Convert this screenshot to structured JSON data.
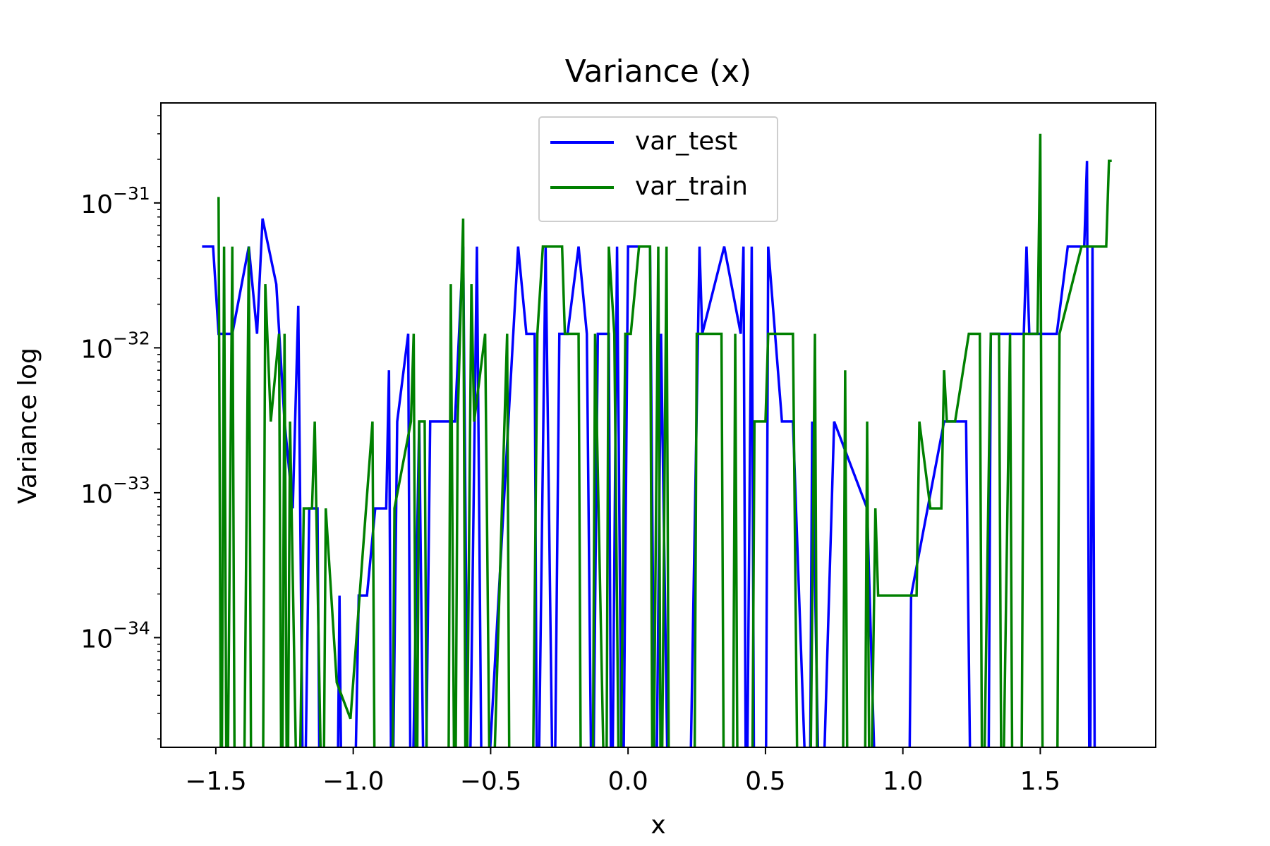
{
  "chart_data": {
    "type": "line",
    "title": "Variance (x)",
    "x_label": "x",
    "y_label": "Variance log",
    "yscale": "log",
    "legend": "upper center",
    "grid": false,
    "xlim": [
      -1.7,
      1.92
    ],
    "ylim": [
      1.75e-35,
      4.9e-31
    ],
    "xticks": [
      {
        "value": -1.5,
        "label": "−1.5"
      },
      {
        "value": -1.0,
        "label": "−1.0"
      },
      {
        "value": -0.5,
        "label": "−0.5"
      },
      {
        "value": 0.0,
        "label": "0.0"
      },
      {
        "value": 0.5,
        "label": "0.5"
      },
      {
        "value": 1.0,
        "label": "1.0"
      },
      {
        "value": 1.5,
        "label": "1.5"
      }
    ],
    "yticks": [
      {
        "value": 1e-34,
        "label": "10",
        "exponent": "−34"
      },
      {
        "value": 1e-33,
        "label": "10",
        "exponent": "−33"
      },
      {
        "value": 1e-32,
        "label": "10",
        "exponent": "−32"
      },
      {
        "value": 1e-31,
        "label": "10",
        "exponent": "−31"
      }
    ],
    "yminorticks": [
      2e-35,
      3e-35,
      4e-35,
      5e-35,
      6e-35,
      7e-35,
      8e-35,
      9e-35,
      2e-34,
      3e-34,
      4e-34,
      5e-34,
      6e-34,
      7e-34,
      8e-34,
      9e-34,
      2e-33,
      3e-33,
      4e-33,
      5e-33,
      6e-33,
      7e-33,
      8e-33,
      9e-33,
      2e-32,
      3e-32,
      4e-32,
      5e-32,
      6e-32,
      7e-32,
      8e-32,
      9e-32,
      2e-31,
      3e-31,
      4e-31
    ],
    "series": [
      {
        "name": "var_test",
        "color": "#0000ff",
        "x": [
          -1.55,
          -1.51,
          -1.49,
          -1.44,
          -1.38,
          -1.35,
          -1.33,
          -1.28,
          -1.25,
          -1.22,
          -1.2,
          -1.18,
          -1.16,
          -1.13,
          -1.12,
          -1.06,
          -1.05,
          -1.04,
          -1.0,
          -0.98,
          -0.95,
          -0.92,
          -0.88,
          -0.87,
          -0.86,
          -0.84,
          -0.8,
          -0.79,
          -0.76,
          -0.74,
          -0.72,
          -0.63,
          -0.6,
          -0.58,
          -0.55,
          -0.53,
          -0.4,
          -0.37,
          -0.34,
          -0.33,
          -0.3,
          -0.27,
          -0.25,
          -0.22,
          -0.18,
          -0.15,
          -0.13,
          -0.11,
          -0.07,
          -0.06,
          -0.04,
          -0.02,
          0.0,
          0.08,
          0.1,
          0.12,
          0.15,
          0.22,
          0.26,
          0.27,
          0.35,
          0.41,
          0.42,
          0.43,
          0.45,
          0.46,
          0.5,
          0.51,
          0.56,
          0.6,
          0.66,
          0.67,
          0.7,
          0.75,
          0.87,
          0.91,
          1.02,
          1.03,
          1.15,
          1.23,
          1.25,
          1.31,
          1.32,
          1.44,
          1.45,
          1.46,
          1.56,
          1.6,
          1.66,
          1.67,
          1.68,
          1.69,
          1.7
        ],
        "values": [
          5e-32,
          5e-32,
          1.25e-32,
          1.25e-32,
          5e-32,
          1.25e-32,
          7.8e-32,
          2.75e-32,
          3.1e-33,
          7.8e-34,
          1.95e-32,
          0,
          7.8e-34,
          7.8e-34,
          0,
          0,
          1.95e-34,
          0,
          0,
          1.95e-34,
          1.95e-34,
          7.8e-34,
          7.8e-34,
          7e-33,
          0,
          3.1e-33,
          1.25e-32,
          0,
          3.1e-33,
          0,
          3.1e-33,
          3.1e-33,
          5e-32,
          0,
          5e-32,
          0,
          5e-32,
          1.25e-32,
          1.25e-32,
          0,
          5e-32,
          0,
          1.25e-32,
          1.25e-32,
          5e-32,
          1.25e-32,
          0,
          1.25e-32,
          1.25e-32,
          0,
          5e-32,
          0,
          5e-32,
          5e-32,
          0,
          1.25e-32,
          0,
          0,
          5e-32,
          1.25e-32,
          5e-32,
          1.25e-32,
          5e-32,
          0,
          5e-32,
          0,
          0,
          5e-32,
          3.1e-33,
          3.1e-33,
          0,
          3.1e-33,
          0,
          3.1e-33,
          7.8e-34,
          0,
          0,
          1.95e-34,
          3.1e-33,
          3.1e-33,
          0,
          0,
          1.25e-32,
          1.25e-32,
          5e-32,
          1.25e-32,
          1.25e-32,
          5e-32,
          5e-32,
          1.95e-31,
          0,
          5e-32,
          0
        ]
      },
      {
        "name": "var_train",
        "color": "#008000",
        "x": [
          -1.49,
          -1.48,
          -1.47,
          -1.46,
          -1.44,
          -1.43,
          -1.4,
          -1.38,
          -1.37,
          -1.33,
          -1.32,
          -1.3,
          -1.27,
          -1.26,
          -1.25,
          -1.24,
          -1.23,
          -1.2,
          -1.18,
          -1.15,
          -1.14,
          -1.11,
          -1.1,
          -1.06,
          -1.01,
          -0.93,
          -0.92,
          -0.86,
          -0.85,
          -0.79,
          -0.78,
          -0.77,
          -0.76,
          -0.74,
          -0.73,
          -0.655,
          -0.645,
          -0.63,
          -0.62,
          -0.6,
          -0.59,
          -0.57,
          -0.56,
          -0.52,
          -0.5,
          -0.44,
          -0.43,
          -0.35,
          -0.33,
          -0.31,
          -0.24,
          -0.23,
          -0.18,
          -0.17,
          -0.13,
          -0.12,
          -0.08,
          -0.07,
          -0.05,
          -0.03,
          -0.01,
          0.01,
          0.04,
          0.08,
          0.09,
          0.11,
          0.12,
          0.14,
          0.15,
          0.24,
          0.25,
          0.34,
          0.35,
          0.38,
          0.39,
          0.4,
          0.45,
          0.46,
          0.5,
          0.51,
          0.6,
          0.62,
          0.66,
          0.68,
          0.69,
          0.78,
          0.79,
          0.8,
          0.86,
          0.87,
          0.88,
          0.9,
          0.91,
          1.05,
          1.06,
          1.1,
          1.14,
          1.15,
          1.16,
          1.19,
          1.24,
          1.28,
          1.29,
          1.32,
          1.35,
          1.36,
          1.39,
          1.4,
          1.43,
          1.44,
          1.49,
          1.5,
          1.51,
          1.56,
          1.57,
          1.65,
          1.74,
          1.75,
          1.76
        ],
        "values": [
          1.1e-31,
          0,
          5e-32,
          0,
          5e-32,
          0,
          0,
          5e-32,
          0,
          0,
          2.75e-32,
          3.1e-33,
          1.25e-32,
          0,
          1.25e-32,
          0,
          3.1e-33,
          0,
          7.8e-34,
          7.8e-34,
          3.1e-33,
          0,
          7.8e-34,
          4.9e-35,
          2.75e-35,
          3.1e-33,
          0,
          0,
          7.8e-34,
          3.1e-33,
          1.25e-32,
          0,
          3.1e-33,
          3.1e-33,
          0,
          0,
          2.75e-32,
          0,
          3.1e-33,
          7.8e-32,
          0,
          2.75e-32,
          3.1e-33,
          1.25e-32,
          0,
          1.25e-32,
          0,
          0,
          1.25e-32,
          5e-32,
          5e-32,
          1.25e-32,
          1.25e-32,
          0,
          0,
          1.25e-32,
          0,
          5e-32,
          1.25e-32,
          0,
          1.25e-32,
          1.25e-32,
          5e-32,
          5e-32,
          0,
          5e-32,
          0,
          5e-32,
          0,
          0,
          1.25e-32,
          1.25e-32,
          0,
          0,
          1.25e-32,
          0,
          0,
          3.1e-33,
          3.1e-33,
          1.25e-32,
          1.25e-32,
          0,
          0,
          1.25e-32,
          0,
          0,
          7e-33,
          0,
          0,
          3.1e-33,
          0,
          7.8e-34,
          1.95e-34,
          1.95e-34,
          3.1e-33,
          7.8e-34,
          7.8e-34,
          7e-33,
          3.1e-33,
          3.1e-33,
          1.25e-32,
          1.25e-32,
          0,
          1.25e-32,
          1.25e-32,
          0,
          1.25e-32,
          0,
          0,
          1.25e-32,
          1.25e-32,
          3e-31,
          0,
          0,
          1.25e-32,
          5e-32,
          5e-32,
          1.95e-31,
          1.95e-31
        ]
      }
    ]
  }
}
